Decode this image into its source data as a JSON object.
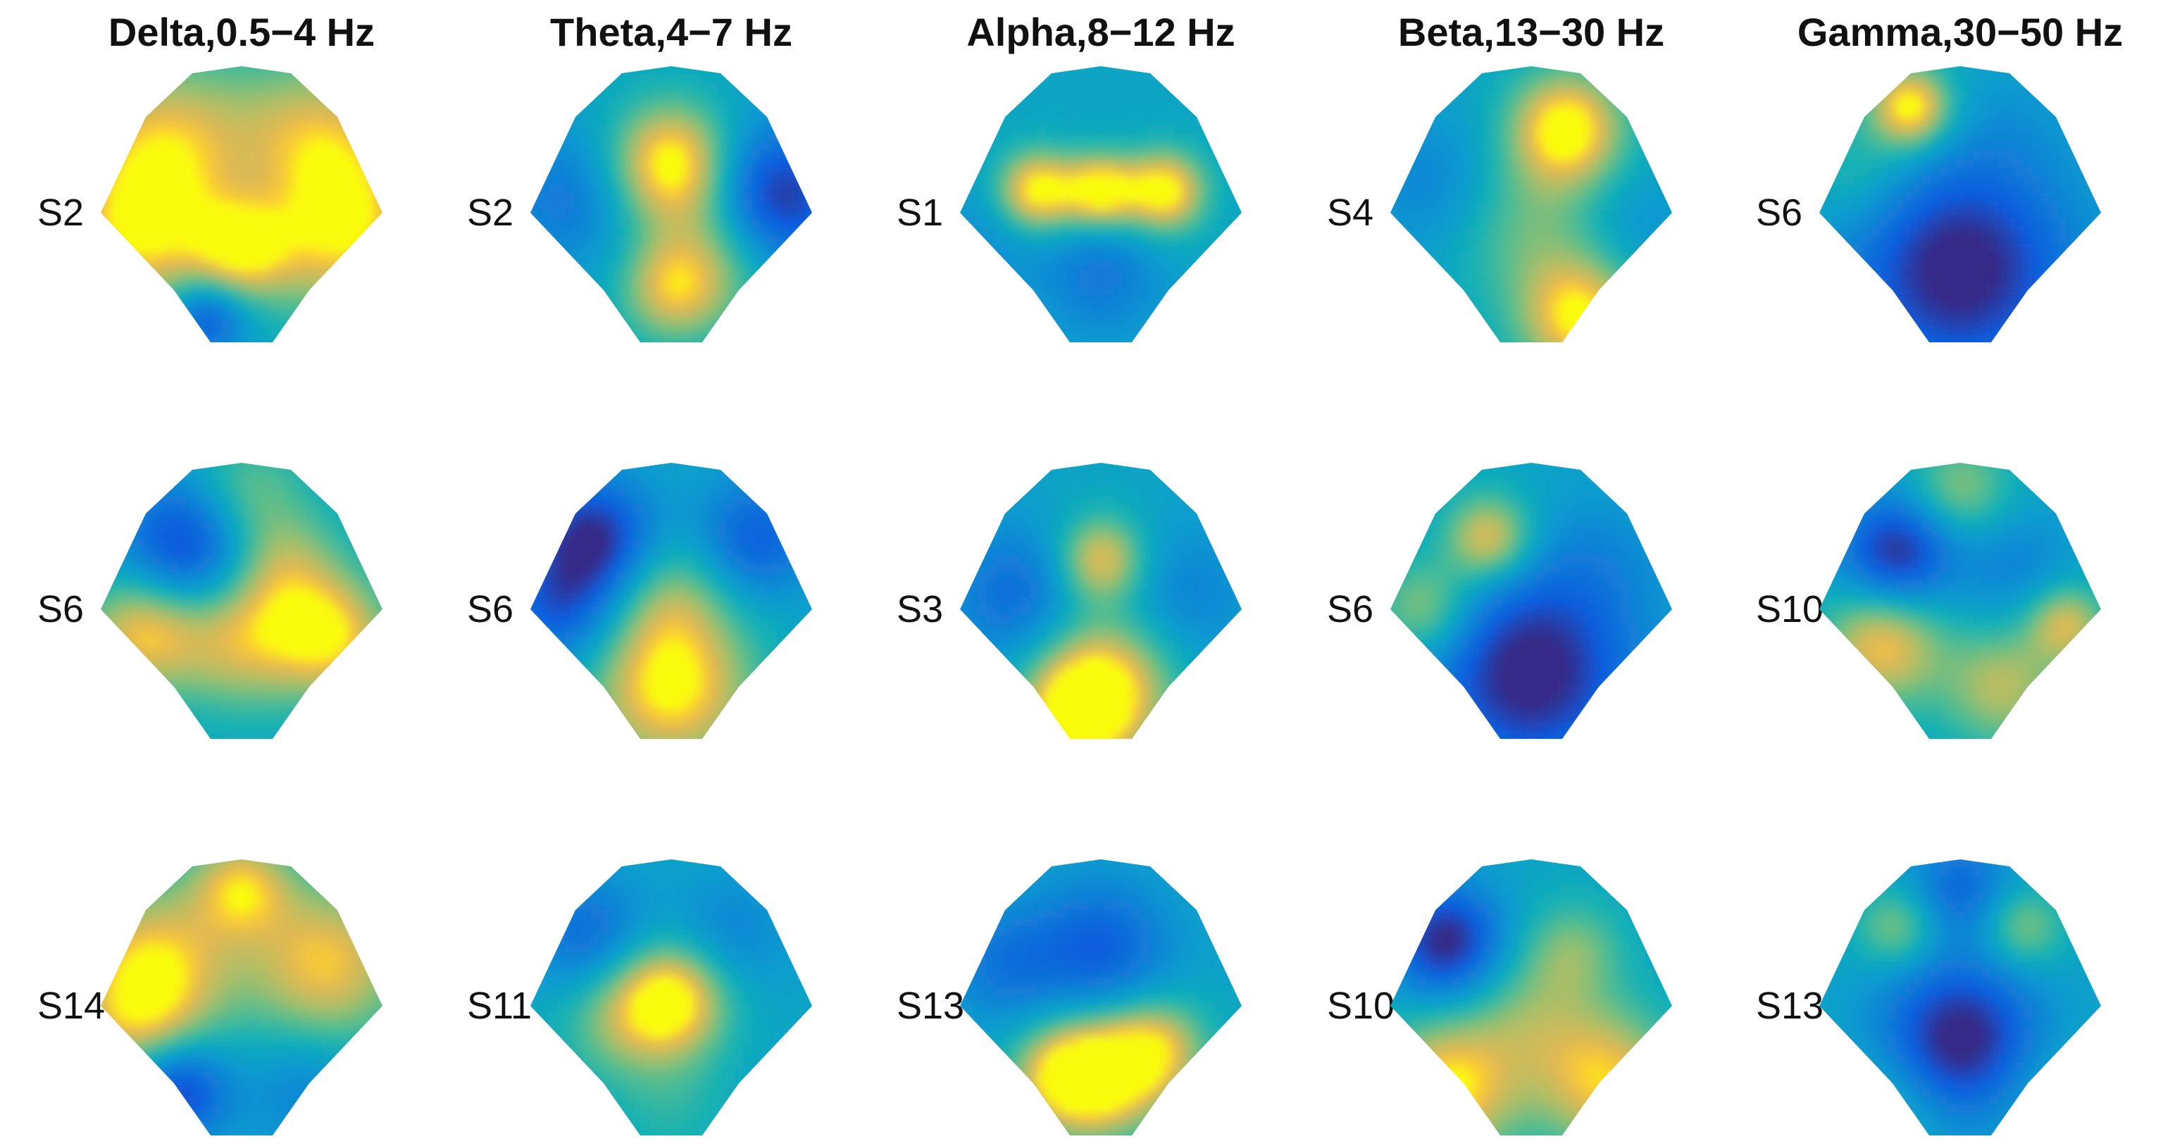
{
  "chart_data": {
    "type": "heatmap",
    "description_kind": "EEG scalp topographic maps",
    "colormap": "parula",
    "bands": [
      {
        "title": "Delta,0.5−4 Hz",
        "subjects": [
          "S2",
          "S6",
          "S14"
        ],
        "hotspots": [
          [
            [
              -0.55,
              0.45,
              0.75,
              0.45
            ],
            [
              0.55,
              0.45,
              0.75,
              0.45
            ],
            [
              -0.75,
              -0.2,
              0.7,
              0.4
            ],
            [
              0.75,
              -0.2,
              0.7,
              0.4
            ],
            [
              0.0,
              -0.25,
              0.8,
              0.25
            ],
            [
              -0.25,
              -0.75,
              -0.7,
              0.2
            ],
            [
              0.1,
              0.1,
              -0.2,
              0.3
            ]
          ],
          [
            [
              -0.35,
              0.45,
              -0.9,
              0.35
            ],
            [
              0.0,
              0.8,
              0.5,
              0.3
            ],
            [
              -0.7,
              -0.15,
              0.8,
              0.3
            ],
            [
              0.65,
              -0.2,
              0.8,
              0.3
            ],
            [
              0.0,
              -0.2,
              0.7,
              0.35
            ],
            [
              0.3,
              0.3,
              0.5,
              0.3
            ]
          ],
          [
            [
              -0.6,
              0.3,
              0.8,
              0.4
            ],
            [
              0.6,
              0.3,
              0.8,
              0.4
            ],
            [
              0.0,
              0.85,
              0.7,
              0.25
            ],
            [
              -0.45,
              -0.6,
              -0.8,
              0.25
            ],
            [
              0.45,
              -0.6,
              -0.3,
              0.3
            ],
            [
              -0.75,
              -0.1,
              0.5,
              0.3
            ]
          ]
        ]
      },
      {
        "title": "Theta,4−7 Hz",
        "subjects": [
          "S2",
          "S6",
          "S11"
        ],
        "hotspots": [
          [
            [
              0.0,
              0.35,
              1.0,
              0.3
            ],
            [
              0.3,
              -0.3,
              0.5,
              0.35
            ],
            [
              0.0,
              -0.55,
              0.6,
              0.25
            ],
            [
              0.75,
              0.1,
              -0.9,
              0.35
            ],
            [
              -0.75,
              0.1,
              -0.4,
              0.35
            ]
          ],
          [
            [
              0.0,
              -0.55,
              0.95,
              0.4
            ],
            [
              -0.55,
              0.5,
              -0.9,
              0.3
            ],
            [
              0.6,
              0.5,
              -0.6,
              0.3
            ],
            [
              0.0,
              0.1,
              0.4,
              0.3
            ],
            [
              -0.8,
              0.0,
              -0.6,
              0.3
            ]
          ],
          [
            [
              0.0,
              0.05,
              1.0,
              0.28
            ],
            [
              -0.4,
              -0.1,
              0.4,
              0.3
            ],
            [
              0.4,
              0.5,
              -0.3,
              0.3
            ],
            [
              -0.6,
              0.5,
              -0.5,
              0.3
            ],
            [
              0.0,
              -0.7,
              0.2,
              0.3
            ]
          ]
        ]
      },
      {
        "title": "Alpha,8−12 Hz",
        "subjects": [
          "S1",
          "S3",
          "S13"
        ],
        "hotspots": [
          [
            [
              -0.45,
              0.15,
              1.0,
              0.2
            ],
            [
              0.0,
              0.15,
              1.0,
              0.18
            ],
            [
              0.45,
              0.15,
              1.0,
              0.2
            ],
            [
              0.0,
              -0.45,
              -0.4,
              0.3
            ],
            [
              -0.8,
              -0.2,
              -0.2,
              0.3
            ]
          ],
          [
            [
              0.0,
              0.35,
              0.8,
              0.22
            ],
            [
              0.0,
              -0.55,
              1.0,
              0.35
            ],
            [
              -0.2,
              -0.8,
              0.7,
              0.25
            ],
            [
              -0.6,
              0.1,
              -0.5,
              0.35
            ],
            [
              0.6,
              0.1,
              -0.3,
              0.35
            ]
          ],
          [
            [
              0.0,
              -0.5,
              1.0,
              0.3
            ],
            [
              0.4,
              -0.3,
              0.7,
              0.25
            ],
            [
              -0.3,
              -0.5,
              0.6,
              0.25
            ],
            [
              0.0,
              0.4,
              -0.6,
              0.35
            ],
            [
              -0.7,
              0.3,
              -0.4,
              0.3
            ]
          ]
        ]
      },
      {
        "title": "Beta,13−30 Hz",
        "subjects": [
          "S4",
          "S6",
          "S10"
        ],
        "hotspots": [
          [
            [
              0.25,
              0.6,
              1.0,
              0.28
            ],
            [
              0.35,
              -0.75,
              0.9,
              0.3
            ],
            [
              -0.7,
              0.2,
              -0.3,
              0.35
            ],
            [
              0.0,
              -0.1,
              0.4,
              0.4
            ],
            [
              0.7,
              -0.1,
              -0.2,
              0.3
            ]
          ],
          [
            [
              -0.3,
              0.5,
              0.8,
              0.22
            ],
            [
              -0.75,
              0.0,
              0.6,
              0.25
            ],
            [
              0.0,
              -0.45,
              -1.0,
              0.5
            ],
            [
              0.5,
              0.35,
              -0.2,
              0.35
            ]
          ],
          [
            [
              -0.6,
              -0.6,
              0.9,
              0.35
            ],
            [
              0.55,
              -0.55,
              0.8,
              0.35
            ],
            [
              -0.6,
              0.45,
              -0.95,
              0.28
            ],
            [
              0.3,
              0.4,
              0.4,
              0.25
            ],
            [
              0.0,
              -0.1,
              0.4,
              0.35
            ]
          ]
        ]
      },
      {
        "title": "Gamma,30−50 Hz",
        "subjects": [
          "S6",
          "S10",
          "S13"
        ],
        "hotspots": [
          [
            [
              -0.35,
              0.75,
              1.0,
              0.2
            ],
            [
              0.0,
              -0.4,
              -1.0,
              0.55
            ],
            [
              0.4,
              0.6,
              -0.1,
              0.3
            ],
            [
              -0.7,
              0.3,
              0.3,
              0.3
            ]
          ],
          [
            [
              -0.55,
              -0.25,
              0.8,
              0.3
            ],
            [
              0.75,
              -0.1,
              0.7,
              0.2
            ],
            [
              0.0,
              0.85,
              0.5,
              0.25
            ],
            [
              -0.45,
              0.4,
              -0.9,
              0.28
            ],
            [
              0.3,
              -0.55,
              0.6,
              0.3
            ],
            [
              0.4,
              0.3,
              -0.3,
              0.3
            ]
          ],
          [
            [
              0.0,
              -0.25,
              -1.0,
              0.4
            ],
            [
              -0.45,
              0.55,
              0.5,
              0.2
            ],
            [
              0.45,
              0.55,
              0.5,
              0.2
            ],
            [
              0.0,
              0.85,
              -0.5,
              0.25
            ],
            [
              -0.5,
              -0.7,
              0.3,
              0.3
            ],
            [
              0.6,
              -0.6,
              0.2,
              0.3
            ]
          ]
        ]
      }
    ]
  }
}
